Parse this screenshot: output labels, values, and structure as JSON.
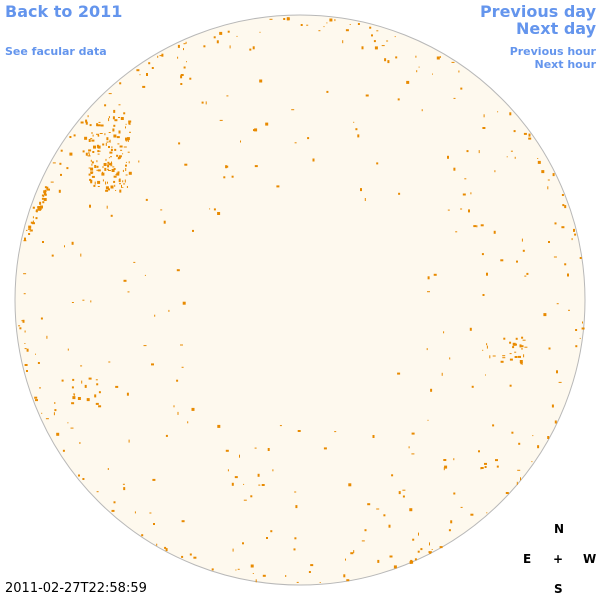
{
  "nav": {
    "back": "Back to 2011",
    "facular": "See facular data",
    "prev_day": "Previous day",
    "next_day": "Next day",
    "prev_hour": "Previous hour",
    "next_hour": "Next hour"
  },
  "compass": {
    "north": "N",
    "east": "E",
    "center": "+",
    "west": "W",
    "south": "S"
  },
  "timestamp": "2011-02-27T22:58:59"
}
